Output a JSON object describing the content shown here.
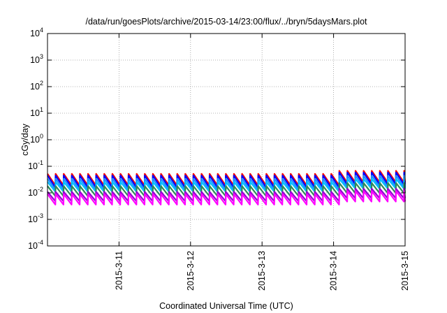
{
  "chart_data": {
    "type": "line",
    "title": "/data/run/goesPlots/archive/2015-03-14/23:00/flux/../bryn/5daysMars.plot",
    "xlabel": "Coordinated Universal Time (UTC)",
    "ylabel": "cGy/day",
    "yscale": "log",
    "ylim": [
      0.0001,
      10000
    ],
    "xlim": [
      "2015-03-10T00:00",
      "2015-03-15T00:00"
    ],
    "y_ticks": [
      {
        "base": "10",
        "exp": "-4",
        "value": 0.0001
      },
      {
        "base": "10",
        "exp": "-3",
        "value": 0.001
      },
      {
        "base": "10",
        "exp": "-2",
        "value": 0.01
      },
      {
        "base": "10",
        "exp": "-1",
        "value": 0.1
      },
      {
        "base": "10",
        "exp": "0",
        "value": 1
      },
      {
        "base": "10",
        "exp": "1",
        "value": 10
      },
      {
        "base": "10",
        "exp": "2",
        "value": 100
      },
      {
        "base": "10",
        "exp": "3",
        "value": 1000
      },
      {
        "base": "10",
        "exp": "4",
        "value": 10000
      }
    ],
    "x_ticks": [
      {
        "label": "2015-3-11",
        "value": "2015-03-11T00:00"
      },
      {
        "label": "2015-3-12",
        "value": "2015-03-12T00:00"
      },
      {
        "label": "2015-3-13",
        "value": "2015-03-13T00:00"
      },
      {
        "label": "2015-3-14",
        "value": "2015-03-14T00:00"
      },
      {
        "label": "2015-3-15",
        "value": "2015-03-15T00:00"
      }
    ],
    "grid": true,
    "legend": "none",
    "waveform": {
      "pattern": "sawtooth",
      "period_hours": 2.72,
      "shift_on": "2015-03-14T00:00",
      "shift_factor": 1.3
    },
    "series": [
      {
        "color": "#ff0000",
        "peak": 0.052,
        "base": 0.019
      },
      {
        "color": "#0000ff",
        "peak": 0.045,
        "base": 0.016
      },
      {
        "color": "#1e90ff",
        "peak": 0.034,
        "base": 0.013
      },
      {
        "color": "#00bfff",
        "peak": 0.026,
        "base": 0.011
      },
      {
        "color": "#2e8b57",
        "peak": 0.018,
        "base": 0.0075
      },
      {
        "color": "#9400d3",
        "peak": 0.011,
        "base": 0.0048
      },
      {
        "color": "#ff00ff",
        "peak": 0.009,
        "base": 0.0036
      }
    ]
  }
}
